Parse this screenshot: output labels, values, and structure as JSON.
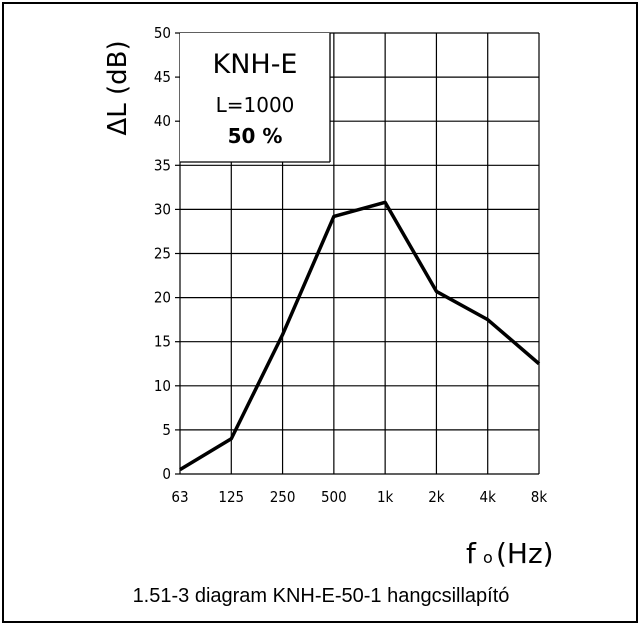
{
  "caption": "1.51-3 diagram   KNH-E-50-1 hangcsillapító",
  "chart_data": {
    "type": "line",
    "title": "KNH-E",
    "annotations": [
      "L=1000",
      "50 %"
    ],
    "ylabel": "ΔL (dB)",
    "xlabel_main": "f",
    "xlabel_sub": "o",
    "xlabel_unit": "(Hz)",
    "categories": [
      "63",
      "125",
      "250",
      "500",
      "1k",
      "2k",
      "4k",
      "8k"
    ],
    "yticks": [
      0,
      5,
      10,
      15,
      20,
      25,
      30,
      35,
      40,
      45,
      50
    ],
    "ylim": [
      0,
      50
    ],
    "grid": true,
    "series": [
      {
        "values": [
          0.5,
          4.0,
          15.8,
          29.2,
          30.8,
          20.7,
          17.5,
          12.5
        ]
      }
    ]
  }
}
